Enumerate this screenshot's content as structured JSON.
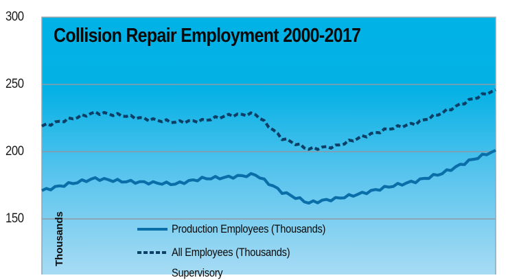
{
  "chart_data": {
    "type": "line",
    "title": "Collision Repair Employment 2000-2017",
    "xlabel": "",
    "ylabel": "Thousands",
    "ylim": [
      100,
      300
    ],
    "yticks": [
      150,
      200,
      250,
      300
    ],
    "xlim": [
      2000,
      2017
    ],
    "grid": true,
    "legend_position": "lower-left inside plot",
    "x": [
      2000,
      2001,
      2002,
      2003,
      2004,
      2005,
      2006,
      2007,
      2008,
      2009,
      2010,
      2011,
      2012,
      2013,
      2014,
      2015,
      2016,
      2017
    ],
    "series": [
      {
        "name": "Production Employees (Thousands)",
        "style": "solid",
        "color": "#0a6fa8",
        "values": [
          171,
          176,
          180,
          178,
          177,
          176,
          180,
          181,
          183,
          170,
          162,
          165,
          169,
          174,
          178,
          184,
          193,
          201
        ]
      },
      {
        "name": "All Employees (Thousands)",
        "style": "dashed",
        "color": "#0b3f66",
        "values": [
          219,
          224,
          229,
          227,
          224,
          222,
          223,
          227,
          228,
          210,
          202,
          204,
          211,
          217,
          221,
          229,
          238,
          246
        ]
      },
      {
        "name": "Supervisory",
        "style": "solid",
        "color": "#0b5a8a",
        "values": []
      }
    ]
  },
  "labels": {
    "title": "Collision Repair Employment 2000-2017",
    "ylabel": "Thousands",
    "yticks": [
      "300",
      "250",
      "200",
      "150"
    ],
    "legend": [
      "Production Employees (Thousands)",
      "All Employees (Thousands)",
      "Supervisory"
    ]
  },
  "colors": {
    "bg_top": "#00b2e6",
    "bg_bottom": "#a9dcf4",
    "grid": "#8f9aa3",
    "production": "#0a6fa8",
    "all": "#0b3f66",
    "supervisory": "#0b5a8a"
  }
}
